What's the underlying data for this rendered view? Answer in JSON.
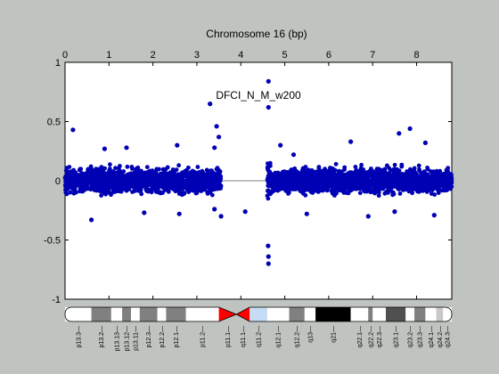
{
  "chart_data": {
    "type": "scatter",
    "title": "Chromosome 16 (bp)",
    "annotation": "DFCI_N_M_w200",
    "x_axis": {
      "position": "top",
      "range": [
        0,
        8.8
      ],
      "ticks": [
        0,
        1,
        2,
        3,
        4,
        5,
        6,
        7,
        8
      ],
      "tick_labels": [
        "0",
        "1",
        "2",
        "3",
        "4",
        "5",
        "6",
        "7",
        "8"
      ]
    },
    "y_axis": {
      "range": [
        -1,
        1
      ],
      "ticks": [
        1,
        0.5,
        0,
        -0.5,
        -1
      ],
      "tick_labels": [
        "1",
        "0.5",
        "0",
        "-0.5",
        "-1"
      ]
    },
    "baseline": 0,
    "grid": false,
    "colors": {
      "points": "#0000b4",
      "baseline": "#808080",
      "background": "#c0c4c0",
      "plot_area": "#ffffff"
    },
    "series": [
      {
        "segments": [
          {
            "x_range": [
              0,
              3.55
            ],
            "spread": 0.17
          },
          {
            "x_range": [
              4.6,
              4.68
            ],
            "spread": 0.3
          },
          {
            "x_range": [
              4.7,
              8.8
            ],
            "spread": 0.17
          }
        ],
        "outliers": [
          [
            0.18,
            0.43
          ],
          [
            0.9,
            0.27
          ],
          [
            1.4,
            0.28
          ],
          [
            2.55,
            0.3
          ],
          [
            3.3,
            0.65
          ],
          [
            3.45,
            0.46
          ],
          [
            3.5,
            0.37
          ],
          [
            3.4,
            0.28
          ],
          [
            3.4,
            -0.24
          ],
          [
            3.55,
            -0.3
          ],
          [
            4.1,
            -0.26
          ],
          [
            4.63,
            0.84
          ],
          [
            4.63,
            0.62
          ],
          [
            4.62,
            -0.55
          ],
          [
            4.63,
            -0.64
          ],
          [
            4.63,
            -0.7
          ],
          [
            4.9,
            0.3
          ],
          [
            5.2,
            0.22
          ],
          [
            6.5,
            0.33
          ],
          [
            7.6,
            0.4
          ],
          [
            7.85,
            0.44
          ],
          [
            8.2,
            0.32
          ],
          [
            0.6,
            -0.33
          ],
          [
            1.8,
            -0.27
          ],
          [
            2.6,
            -0.28
          ],
          [
            5.5,
            -0.28
          ],
          [
            6.9,
            -0.3
          ],
          [
            7.5,
            -0.26
          ],
          [
            8.4,
            -0.29
          ]
        ]
      }
    ],
    "ideogram": {
      "bands": [
        {
          "name": "p13.3",
          "start": 0,
          "end": 0.6,
          "stain": "gneg"
        },
        {
          "name": "p13.2",
          "start": 0.6,
          "end": 1.05,
          "stain": "gpos50"
        },
        {
          "name": "p13.13",
          "start": 1.05,
          "end": 1.3,
          "stain": "gneg"
        },
        {
          "name": "p13.12",
          "start": 1.3,
          "end": 1.5,
          "stain": "gpos50"
        },
        {
          "name": "p13.11",
          "start": 1.5,
          "end": 1.7,
          "stain": "gneg"
        },
        {
          "name": "p12.3",
          "start": 1.7,
          "end": 2.1,
          "stain": "gpos50"
        },
        {
          "name": "p12.2",
          "start": 2.1,
          "end": 2.3,
          "stain": "gneg"
        },
        {
          "name": "p12.1",
          "start": 2.3,
          "end": 2.75,
          "stain": "gpos50"
        },
        {
          "name": "p11.2",
          "start": 2.75,
          "end": 3.5,
          "stain": "gneg"
        },
        {
          "name": "p11.1",
          "start": 3.5,
          "end": 3.9,
          "stain": "acen"
        },
        {
          "name": "q11.1",
          "start": 3.9,
          "end": 4.2,
          "stain": "acen"
        },
        {
          "name": "q11.2",
          "start": 4.2,
          "end": 4.6,
          "stain": "gvar"
        },
        {
          "name": "q12.1",
          "start": 4.6,
          "end": 5.1,
          "stain": "gneg"
        },
        {
          "name": "q12.2",
          "start": 5.1,
          "end": 5.45,
          "stain": "gpos50"
        },
        {
          "name": "q13",
          "start": 5.45,
          "end": 5.7,
          "stain": "gneg"
        },
        {
          "name": "q21",
          "start": 5.7,
          "end": 6.5,
          "stain": "gpos100"
        },
        {
          "name": "q22.1",
          "start": 6.5,
          "end": 6.9,
          "stain": "gneg"
        },
        {
          "name": "q22.2",
          "start": 6.9,
          "end": 7.0,
          "stain": "gpos50"
        },
        {
          "name": "q22.3",
          "start": 7.0,
          "end": 7.3,
          "stain": "gneg"
        },
        {
          "name": "q23.1",
          "start": 7.3,
          "end": 7.75,
          "stain": "gpos75"
        },
        {
          "name": "q23.2",
          "start": 7.75,
          "end": 7.95,
          "stain": "gneg"
        },
        {
          "name": "q23.3",
          "start": 7.95,
          "end": 8.2,
          "stain": "gpos50"
        },
        {
          "name": "q24.1",
          "start": 8.2,
          "end": 8.45,
          "stain": "gneg"
        },
        {
          "name": "q24.2",
          "start": 8.45,
          "end": 8.6,
          "stain": "gpos25"
        },
        {
          "name": "q24.3",
          "start": 8.6,
          "end": 8.8,
          "stain": "gneg"
        }
      ],
      "stain_colors": {
        "gneg": "#ffffff",
        "gpos25": "#c8c8c8",
        "gpos50": "#808080",
        "gpos75": "#505050",
        "gpos100": "#000000",
        "gvar": "#c4dcf4",
        "acen": "#ff0000"
      }
    }
  }
}
